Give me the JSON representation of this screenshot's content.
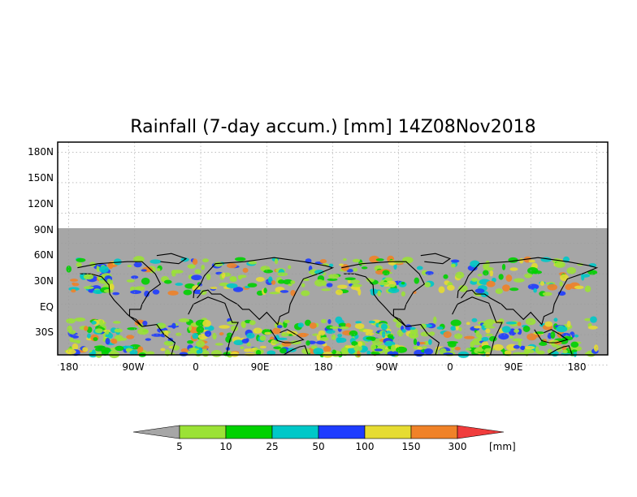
{
  "title": "Rainfall (7-day accum.) [mm] 14Z08Nov2018",
  "map": {
    "y_ticks": [
      "180N",
      "150N",
      "120N",
      "90N",
      "60N",
      "30N",
      "EQ",
      "30S"
    ],
    "x_ticks": [
      "180",
      "90W",
      "0",
      "90E",
      "180",
      "90W",
      "0",
      "90E",
      "180"
    ],
    "grid": true,
    "data_region": "90N to 90S, 180 to 180 repeated twice"
  },
  "colorbar": {
    "unit_label": "[mm]",
    "thresholds": [
      "5",
      "10",
      "25",
      "50",
      "100",
      "150",
      "300"
    ],
    "colors": {
      "below": "#a6a6a6",
      "5-10": "#9be236",
      "10-25": "#00d200",
      "25-50": "#00c8c8",
      "50-100": "#1e3cff",
      "100-150": "#e6dc32",
      "150-300": "#f08228",
      "above": "#f03c3c"
    }
  },
  "colors": {
    "ocean_dry": "#a6a6a6",
    "grid": "#999999",
    "coast": "#000000"
  }
}
